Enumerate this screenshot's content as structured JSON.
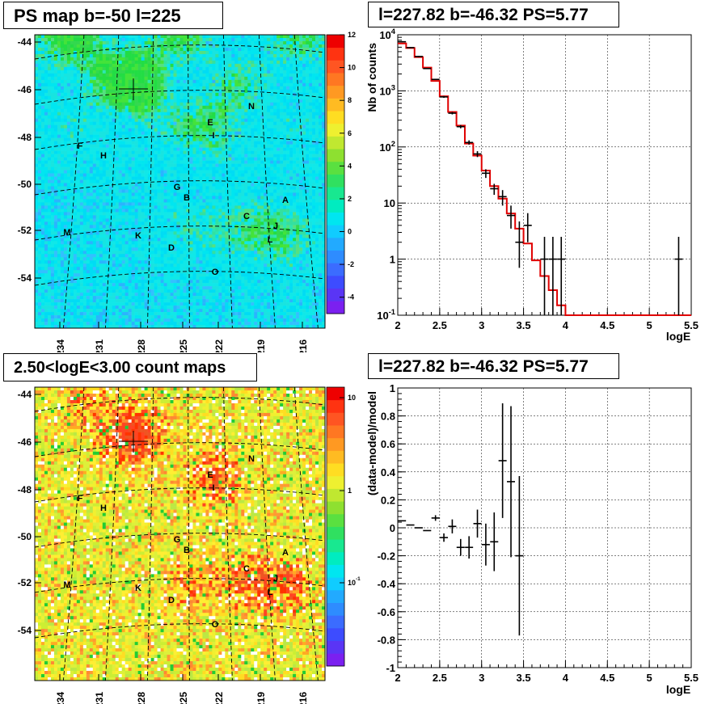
{
  "chart_data": [
    {
      "type": "heatmap",
      "title": "PS map b=-50 l=225",
      "y_ticks": [
        "-44",
        "-46",
        "-48",
        "-50",
        "-52",
        "-54"
      ],
      "x_ticks": [
        "234",
        "231",
        "228",
        "225",
        "222",
        "219",
        "216"
      ],
      "colorbar_ticks": [
        "12",
        "10",
        "8",
        "6",
        "4",
        "2",
        "0",
        "-2",
        "-4"
      ],
      "colorbar_range": [
        -5,
        12
      ],
      "sources": [
        "N",
        "E",
        "I",
        "F",
        "H",
        "G",
        "B",
        "A",
        "C",
        "J",
        "M",
        "K",
        "L",
        "D",
        "O"
      ]
    },
    {
      "type": "line",
      "title": "l=227.82 b=-46.32 PS=5.77",
      "xlabel": "logE",
      "ylabel": "Nb of counts",
      "xlim": [
        2,
        5.5
      ],
      "ylim": [
        0.1,
        10000
      ],
      "yscale": "log",
      "grid": true,
      "x_ticks": [
        "2",
        "2.5",
        "3",
        "3.5",
        "4",
        "4.5",
        "5",
        "5.5"
      ],
      "y_ticks": [
        "10^-1",
        "1",
        "10",
        "10^2",
        "10^3",
        "10^4"
      ],
      "model": {
        "color": "#e00000",
        "edges": [
          2.0,
          2.1,
          2.2,
          2.3,
          2.4,
          2.5,
          2.6,
          2.7,
          2.8,
          2.9,
          3.0,
          3.1,
          3.2,
          3.3,
          3.4,
          3.5,
          3.6,
          3.7,
          3.8,
          3.9,
          4.0,
          5.5
        ],
        "values": [
          7000,
          5800,
          4000,
          2600,
          1500,
          800,
          420,
          240,
          115,
          70,
          38,
          20,
          12,
          6.5,
          3.5,
          1.9,
          0.95,
          0.5,
          0.28,
          0.15,
          0.1
        ]
      },
      "data": {
        "x": [
          2.05,
          2.15,
          2.25,
          2.35,
          2.45,
          2.55,
          2.65,
          2.75,
          2.85,
          2.95,
          3.05,
          3.15,
          3.25,
          3.35,
          3.45,
          3.55,
          3.75,
          3.85,
          3.95,
          5.35
        ],
        "y": [
          7500,
          5900,
          4100,
          2500,
          1600,
          780,
          400,
          230,
          120,
          75,
          34,
          18,
          13,
          6,
          2,
          4,
          1,
          1,
          1,
          1
        ],
        "ylow": [
          7300,
          5750,
          3980,
          2450,
          1560,
          750,
          380,
          215,
          110,
          66,
          28,
          14,
          9,
          3.5,
          0.7,
          2,
          0.1,
          0.1,
          0.1,
          0.1
        ],
        "yhigh": [
          7700,
          6050,
          4220,
          2550,
          1640,
          810,
          420,
          245,
          131,
          84,
          40,
          22,
          17,
          9,
          4.7,
          6.6,
          2.5,
          2.5,
          2.5,
          2.5
        ]
      }
    },
    {
      "type": "heatmap",
      "title": "2.50<logE<3.00 count maps",
      "y_ticks": [
        "-44",
        "-46",
        "-48",
        "-50",
        "-52",
        "-54"
      ],
      "x_ticks": [
        "234",
        "231",
        "228",
        "225",
        "222",
        "219",
        "216"
      ],
      "colorbar_ticks": [
        "10",
        "1",
        "10^-1"
      ],
      "colorbar_scale": "log",
      "sources": [
        "N",
        "E",
        "I",
        "F",
        "H",
        "G",
        "B",
        "A",
        "C",
        "J",
        "M",
        "K",
        "L",
        "D",
        "O"
      ]
    },
    {
      "type": "scatter",
      "title": "l=227.82 b=-46.32 PS=5.77",
      "xlabel": "logE",
      "ylabel": "(data-model)/model",
      "xlim": [
        2,
        5.5
      ],
      "ylim": [
        -1,
        1
      ],
      "grid": true,
      "x_ticks": [
        "2",
        "2.5",
        "3",
        "3.5",
        "4",
        "4.5",
        "5",
        "5.5"
      ],
      "y_ticks": [
        "-1",
        "-0.8",
        "-0.6",
        "-0.4",
        "-0.2",
        "0",
        "0.2",
        "0.4",
        "0.6",
        "0.8",
        "1"
      ],
      "data": {
        "x": [
          2.05,
          2.15,
          2.25,
          2.35,
          2.45,
          2.55,
          2.65,
          2.75,
          2.85,
          2.95,
          3.05,
          3.15,
          3.25,
          3.35,
          3.45
        ],
        "y": [
          0.05,
          0.02,
          0.0,
          -0.02,
          0.07,
          -0.07,
          0.01,
          -0.14,
          -0.14,
          0.03,
          -0.12,
          -0.1,
          0.48,
          0.33,
          -0.2
        ],
        "err": [
          0.01,
          0.01,
          0.01,
          0.01,
          0.02,
          0.03,
          0.05,
          0.06,
          0.08,
          0.1,
          0.15,
          0.21,
          0.41,
          0.54,
          0.57
        ]
      }
    }
  ]
}
